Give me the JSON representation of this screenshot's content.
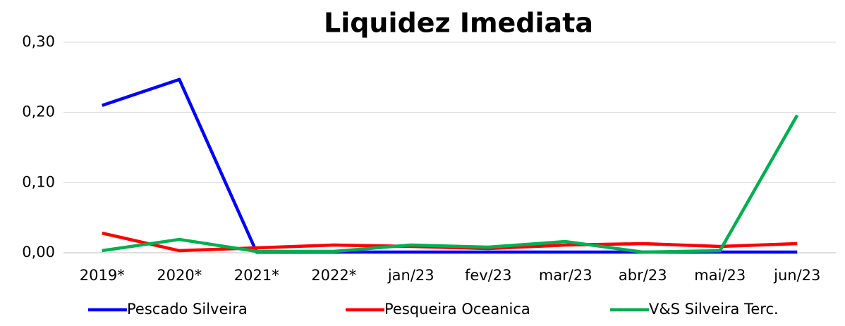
{
  "chart_data": {
    "type": "line",
    "title": "Liquidez Imediata",
    "categories": [
      "2019*",
      "2020*",
      "2021*",
      "2022*",
      "jan/23",
      "fev/23",
      "mar/23",
      "abr/23",
      "mai/23",
      "jun/23"
    ],
    "series": [
      {
        "name": "Pescado Silveira",
        "color": "#0000ff",
        "values": [
          0.21,
          0.247,
          0.001,
          0.001,
          0.001,
          0.001,
          0.001,
          0.001,
          0.001,
          0.001
        ]
      },
      {
        "name": "Pesqueira Oceanica",
        "color": "#ff0000",
        "values": [
          0.028,
          0.003,
          0.007,
          0.011,
          0.009,
          0.006,
          0.011,
          0.013,
          0.009,
          0.013
        ]
      },
      {
        "name": "V&S Silveira Terc.",
        "color": "#00b050",
        "values": [
          0.003,
          0.019,
          0.002,
          0.002,
          0.011,
          0.008,
          0.016,
          0.001,
          0.003,
          0.196
        ]
      }
    ],
    "ylim": [
      0,
      0.3
    ],
    "yticks": [
      {
        "value": 0,
        "label": "0,00"
      },
      {
        "value": 0.1,
        "label": "0,10"
      },
      {
        "value": 0.2,
        "label": "0,20"
      },
      {
        "value": 0.3,
        "label": "0,30"
      }
    ],
    "grid": true,
    "legend": "bottom"
  }
}
